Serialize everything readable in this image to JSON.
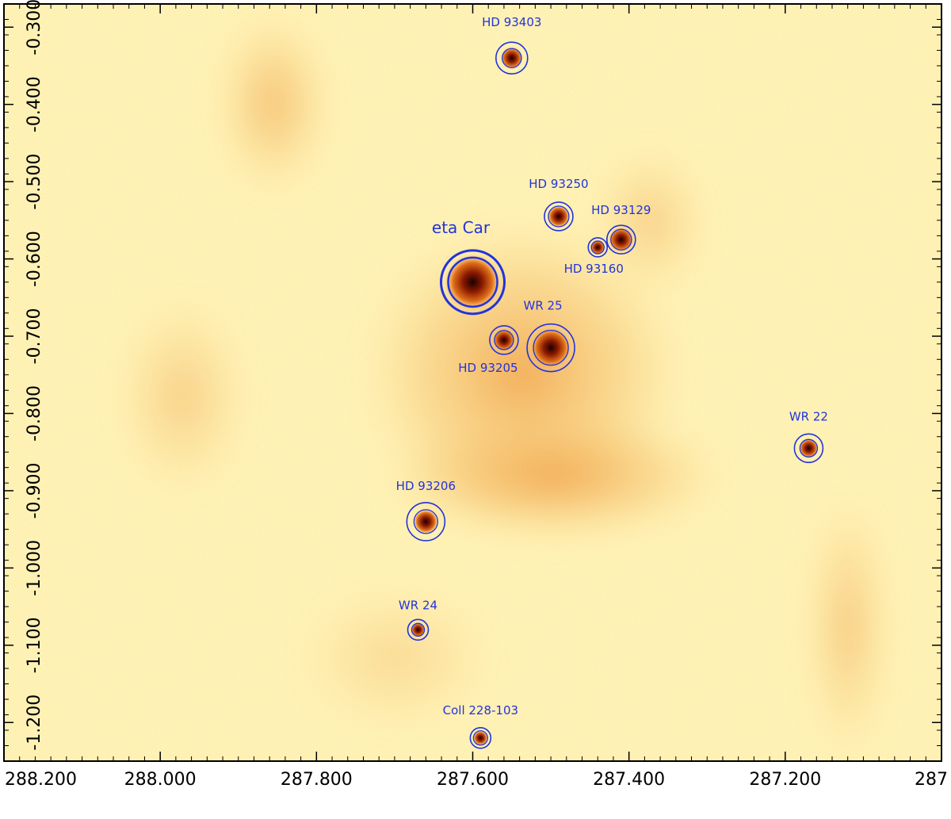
{
  "image": {
    "description_colors": {
      "background": "#fff4b8",
      "diffuse": "#f7c870",
      "core": "#8a1a00",
      "marker": "#2233dd"
    }
  },
  "axes": {
    "x_ticks": [
      "288.200",
      "288.000",
      "287.800",
      "287.600",
      "287.400",
      "287.200",
      "287"
    ],
    "y_ticks": [
      "-0.300",
      "-0.400",
      "-0.500",
      "-0.600",
      "-0.700",
      "-0.800",
      "-0.900",
      "-1.000",
      "-1.100",
      "-1.200"
    ],
    "x_range": [
      288.2,
      287.0
    ],
    "y_range": [
      -0.27,
      -1.25
    ]
  },
  "sources": [
    {
      "name": "HD 93403",
      "x": 287.55,
      "y": -0.34,
      "big": false
    },
    {
      "name": "HD 93250",
      "x": 287.49,
      "y": -0.545,
      "big": false
    },
    {
      "name": "HD 93129",
      "x": 287.41,
      "y": -0.575,
      "big": false
    },
    {
      "name": "HD 93160",
      "x": 287.44,
      "y": -0.585,
      "big": false
    },
    {
      "name": "eta Car",
      "x": 287.6,
      "y": -0.63,
      "big": true
    },
    {
      "name": "WR 25",
      "x": 287.5,
      "y": -0.715,
      "big": false
    },
    {
      "name": "HD 93205",
      "x": 287.56,
      "y": -0.705,
      "big": false
    },
    {
      "name": "WR 22",
      "x": 287.17,
      "y": -0.845,
      "big": false
    },
    {
      "name": "HD 93206",
      "x": 287.66,
      "y": -0.94,
      "big": false
    },
    {
      "name": "WR 24",
      "x": 287.67,
      "y": -1.08,
      "big": false
    },
    {
      "name": "Coll 228-103",
      "x": 287.59,
      "y": -1.22,
      "big": false
    }
  ]
}
